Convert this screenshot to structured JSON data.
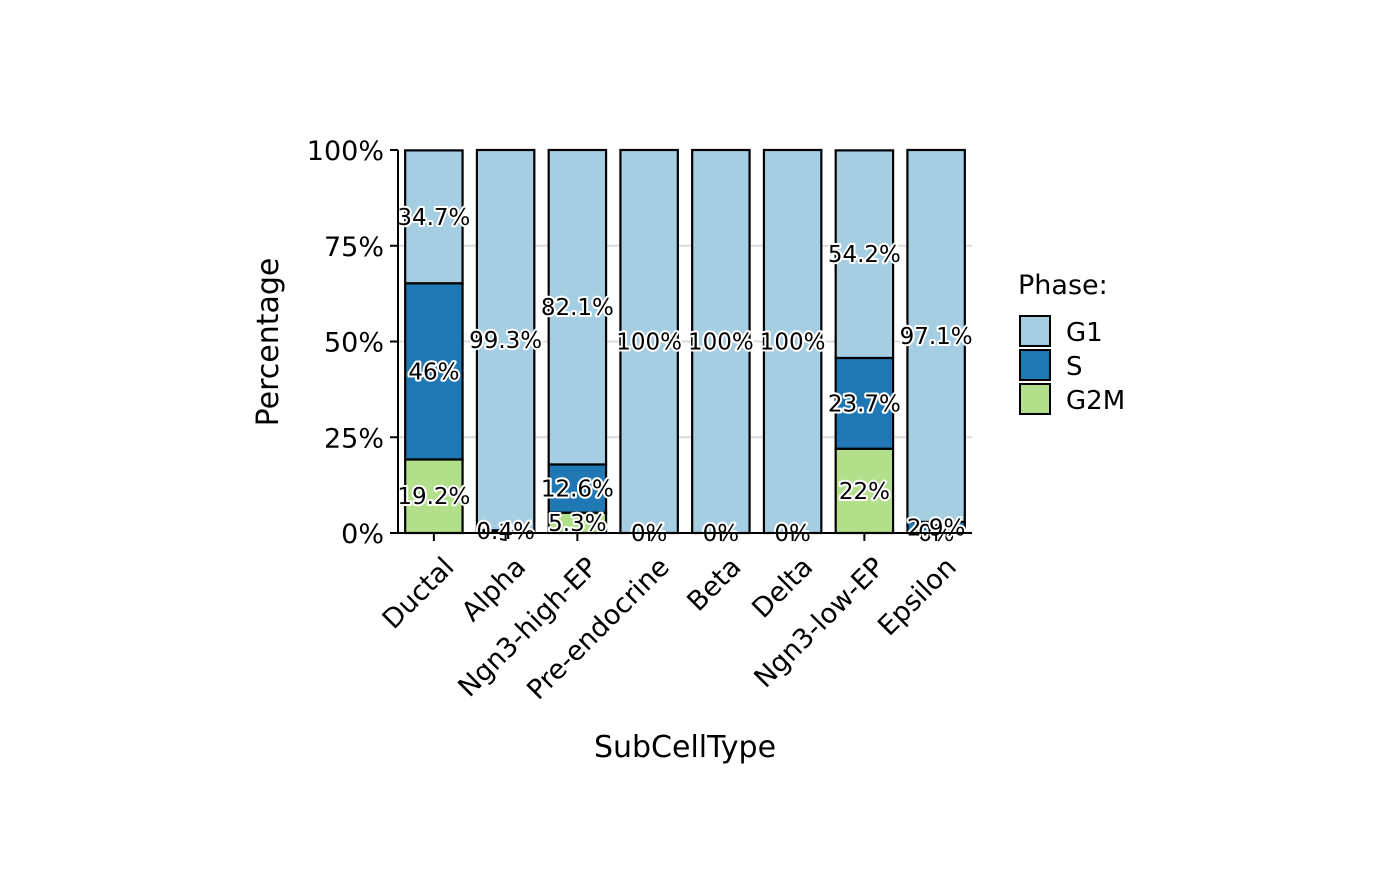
{
  "chart_data": {
    "type": "bar",
    "stacked": true,
    "normalized": true,
    "xlabel": "SubCellType",
    "ylabel": "Percentage",
    "ylim": [
      0,
      1
    ],
    "y_ticks": [
      "0%",
      "25%",
      "50%",
      "75%",
      "100%"
    ],
    "grid": "horizontal",
    "legend": {
      "title": "Phase:",
      "placement": "right"
    },
    "categories": [
      "Ductal",
      "Alpha",
      "Ngn3-high-EP",
      "Pre-endocrine",
      "Beta",
      "Delta",
      "Ngn3-low-EP",
      "Epsilon"
    ],
    "series": [
      {
        "name": "G2M",
        "color": "#b2df8a",
        "values": [
          0.192,
          0.003,
          0.053,
          0.0,
          0.0,
          0.0,
          0.22,
          0.0
        ],
        "labels": [
          "19.2%",
          "0.3%",
          "5.3%",
          "0%",
          "0%",
          "0%",
          "22%",
          "0%"
        ]
      },
      {
        "name": "S",
        "color": "#1f78b4",
        "values": [
          0.46,
          0.004,
          0.126,
          0.0,
          0.0,
          0.0,
          0.237,
          0.029
        ],
        "labels": [
          "46%",
          "0.4%",
          "12.6%",
          "0%",
          "0%",
          "0%",
          "23.7%",
          "2.9%"
        ]
      },
      {
        "name": "G1",
        "color": "#a6cee3",
        "values": [
          0.347,
          0.993,
          0.821,
          1.0,
          1.0,
          1.0,
          0.542,
          0.971
        ],
        "labels": [
          "34.7%",
          "99.3%",
          "82.1%",
          "100%",
          "100%",
          "100%",
          "54.2%",
          "97.1%"
        ]
      }
    ]
  }
}
